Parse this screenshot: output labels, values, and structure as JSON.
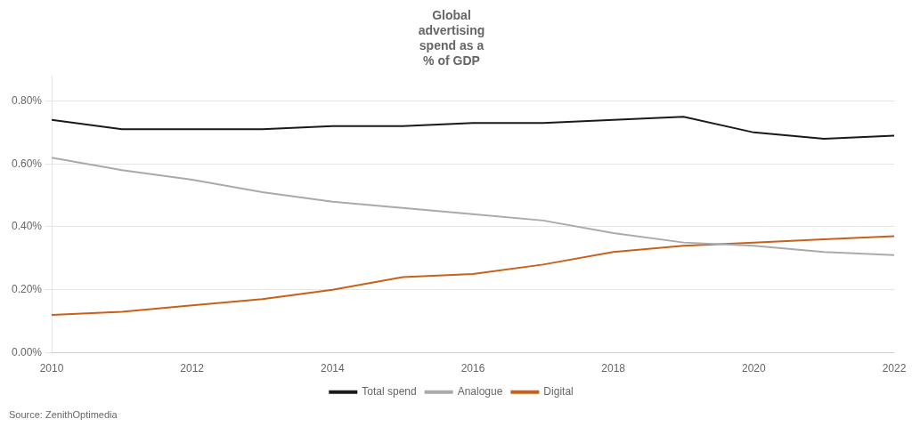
{
  "chart_data": {
    "type": "line",
    "title": "Global\nadvertising\nspend as a\n% of GDP",
    "annotations": [
      "Source: ZenithOptimedia"
    ],
    "x": [
      2010,
      2011,
      2012,
      2013,
      2014,
      2015,
      2016,
      2017,
      2018,
      2019,
      2020,
      2021,
      2022
    ],
    "series": [
      {
        "name": "Total spend",
        "color": "#1a1a1a",
        "values": [
          0.0074,
          0.0071,
          0.0071,
          0.0071,
          0.0072,
          0.0072,
          0.0073,
          0.0073,
          0.0074,
          0.0075,
          0.007,
          0.0068,
          0.0069
        ]
      },
      {
        "name": "Analogue",
        "color": "#aaaaaa",
        "values": [
          0.0062,
          0.0058,
          0.0055,
          0.0051,
          0.0048,
          0.0046,
          0.0044,
          0.0042,
          0.0038,
          0.0035,
          0.0034,
          0.0032,
          0.0031
        ]
      },
      {
        "name": "Digital",
        "color": "#c8601a",
        "values": [
          0.0012,
          0.0013,
          0.0015,
          0.0017,
          0.002,
          0.0024,
          0.0025,
          0.0028,
          0.0032,
          0.0034,
          0.0035,
          0.0036,
          0.0037
        ]
      }
    ],
    "xlim": [
      2010,
      2022
    ],
    "xticks": [
      2010,
      2012,
      2014,
      2016,
      2018,
      2020,
      2022
    ],
    "ylim": [
      0.0,
      0.0088
    ],
    "yticks": [
      {
        "value": 0.0,
        "label": "0.00%"
      },
      {
        "value": 0.002,
        "label": "0.20%"
      },
      {
        "value": 0.004,
        "label": "0.40%"
      },
      {
        "value": 0.006,
        "label": "0.60%"
      },
      {
        "value": 0.008,
        "label": "0.80%"
      }
    ],
    "grid": "y",
    "legend": "bottom"
  }
}
